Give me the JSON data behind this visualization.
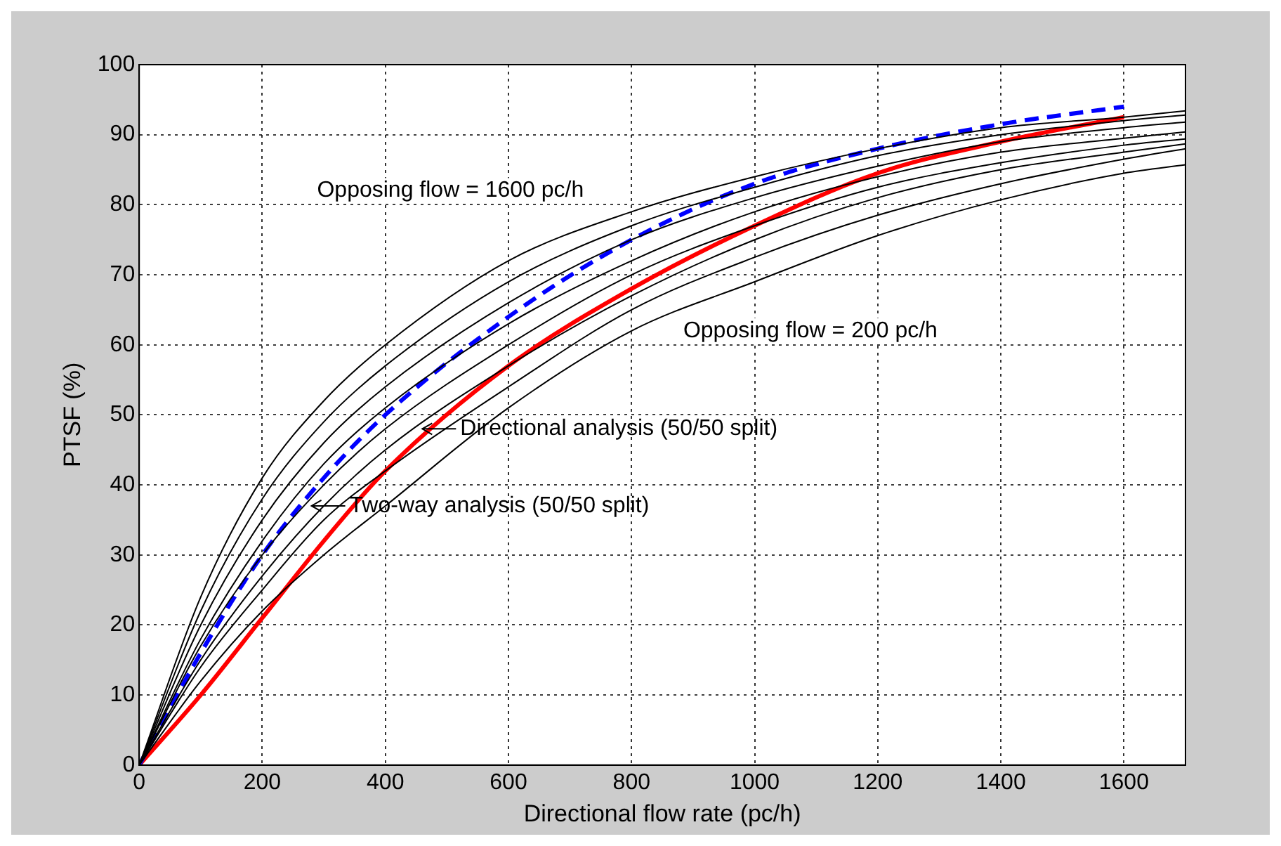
{
  "chart_data": {
    "type": "line",
    "xlabel": "Directional flow rate (pc/h)",
    "ylabel": "PTSF (%)",
    "xlim": [
      0,
      1700
    ],
    "xticks": [
      0,
      200,
      400,
      600,
      800,
      1000,
      1200,
      1400,
      1600
    ],
    "ylim": [
      0,
      100
    ],
    "yticks": [
      0,
      10,
      20,
      30,
      40,
      50,
      60,
      70,
      80,
      90,
      100
    ],
    "grid": true,
    "legend": false,
    "marker": "none",
    "series": [
      {
        "color": "#000000",
        "x": [
          0,
          100,
          200,
          300,
          400,
          600,
          800,
          1000,
          1200,
          1400,
          1600,
          1700
        ],
        "values": [
          0,
          24,
          41,
          52,
          60,
          72,
          79,
          84,
          88,
          91,
          92.5,
          93.4
        ]
      },
      {
        "color": "#000000",
        "x": [
          0,
          100,
          200,
          300,
          400,
          600,
          800,
          1000,
          1200,
          1400,
          1600,
          1700
        ],
        "values": [
          0,
          22,
          38,
          49,
          57,
          69,
          77,
          82.5,
          87,
          90,
          92,
          92.8
        ]
      },
      {
        "color": "#000000",
        "x": [
          0,
          100,
          200,
          300,
          400,
          600,
          800,
          1000,
          1200,
          1400,
          1600,
          1700
        ],
        "values": [
          0,
          20,
          35,
          46,
          54,
          66,
          75,
          81,
          85.5,
          89,
          91,
          91.8
        ]
      },
      {
        "color": "#000000",
        "x": [
          0,
          100,
          200,
          300,
          400,
          600,
          800,
          1000,
          1200,
          1400,
          1600,
          1700
        ],
        "values": [
          0,
          18,
          32,
          43,
          51,
          63,
          72,
          79,
          84,
          87.5,
          89.5,
          90.4
        ]
      },
      {
        "color": "#000000",
        "x": [
          0,
          100,
          200,
          300,
          400,
          600,
          800,
          1000,
          1200,
          1400,
          1600,
          1700
        ],
        "values": [
          0,
          17,
          30,
          40,
          48,
          60,
          70,
          77,
          82.5,
          86,
          88.5,
          89.4
        ]
      },
      {
        "color": "#000000",
        "x": [
          0,
          100,
          200,
          300,
          400,
          600,
          800,
          1000,
          1200,
          1400,
          1600,
          1700
        ],
        "values": [
          0,
          15,
          27,
          37,
          45,
          57,
          67,
          75,
          81,
          85,
          87.5,
          88.7
        ]
      },
      {
        "color": "#000000",
        "x": [
          0,
          100,
          200,
          300,
          400,
          600,
          800,
          1000,
          1200,
          1400,
          1600,
          1700
        ],
        "values": [
          0,
          14,
          25,
          35,
          42,
          54,
          65,
          72.5,
          78.5,
          83,
          86.5,
          88
        ]
      },
      {
        "color": "#000000",
        "x": [
          0,
          100,
          200,
          300,
          400,
          600,
          800,
          1000,
          1200,
          1400,
          1600,
          1700
        ],
        "values": [
          0,
          12,
          22,
          30,
          37,
          51,
          62,
          69,
          75.6,
          80.7,
          84.5,
          85.7
        ]
      },
      {
        "color": "#0000ff",
        "line_style": "dashed",
        "x": [
          0,
          100,
          200,
          300,
          400,
          600,
          800,
          1000,
          1200,
          1400,
          1600
        ],
        "values": [
          0,
          16,
          30,
          41,
          50,
          64,
          75,
          83,
          88,
          91.5,
          94
        ]
      },
      {
        "color": "#ff0000",
        "x": [
          0,
          100,
          200,
          300,
          400,
          600,
          800,
          1000,
          1200,
          1400,
          1600
        ],
        "values": [
          0,
          10,
          21,
          32,
          42,
          57,
          68,
          77,
          84.5,
          89,
          92.5
        ]
      }
    ],
    "annotations": [
      "Opposing flow = 1600 pc/h",
      "Opposing flow = 200 pc/h",
      {
        "text": "Directional analysis (50/50 split)",
        "x": 460,
        "y": 48
      },
      {
        "text": "Two-way analysis (50/50 split)",
        "x": 280,
        "y": 37
      }
    ]
  }
}
